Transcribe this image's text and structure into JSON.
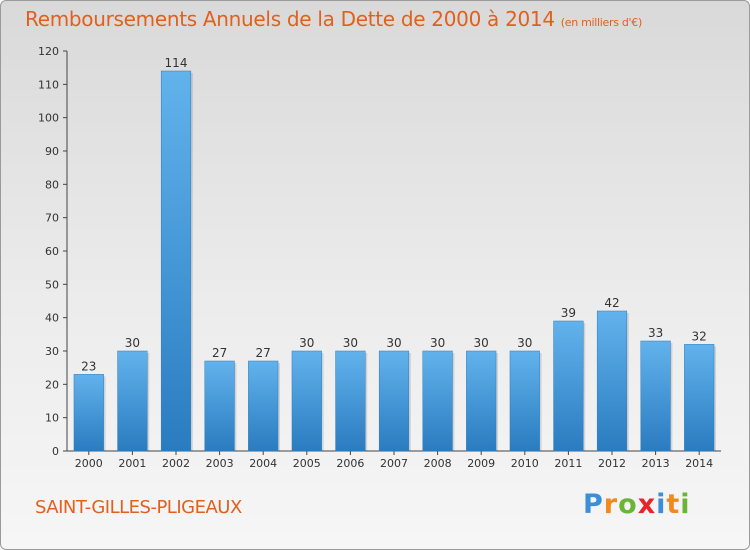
{
  "title": "Remboursements Annuels de la Dette de 2000 à 2014",
  "subtitle": "(en milliers d'€)",
  "commune": "SAINT-GILLES-PLIGEAUX",
  "logo": {
    "letters": [
      "P",
      "r",
      "o",
      "x",
      "i",
      "t",
      "i"
    ],
    "colors": [
      "#3a8fd8",
      "#f08a1c",
      "#6bb536",
      "#e8242a",
      "#3a8fd8",
      "#f08a1c",
      "#6bb536"
    ]
  },
  "colors": {
    "bar": "#3d95d6",
    "bar_light": "#62b2ec",
    "bar_dark": "#2a7cc0",
    "title": "#e0601c"
  },
  "chart_data": {
    "type": "bar",
    "categories": [
      "2000",
      "2001",
      "2002",
      "2003",
      "2004",
      "2005",
      "2006",
      "2007",
      "2008",
      "2009",
      "2010",
      "2011",
      "2012",
      "2013",
      "2014"
    ],
    "values": [
      23,
      30,
      114,
      27,
      27,
      30,
      30,
      30,
      30,
      30,
      30,
      39,
      42,
      33,
      32
    ],
    "title": "Remboursements Annuels de la Dette de 2000 à 2014",
    "xlabel": "",
    "ylabel": "",
    "ylim": [
      0,
      120
    ],
    "yticks": [
      0,
      10,
      20,
      30,
      40,
      50,
      60,
      70,
      80,
      90,
      100,
      110,
      120
    ],
    "grid": false,
    "data_labels": true
  }
}
